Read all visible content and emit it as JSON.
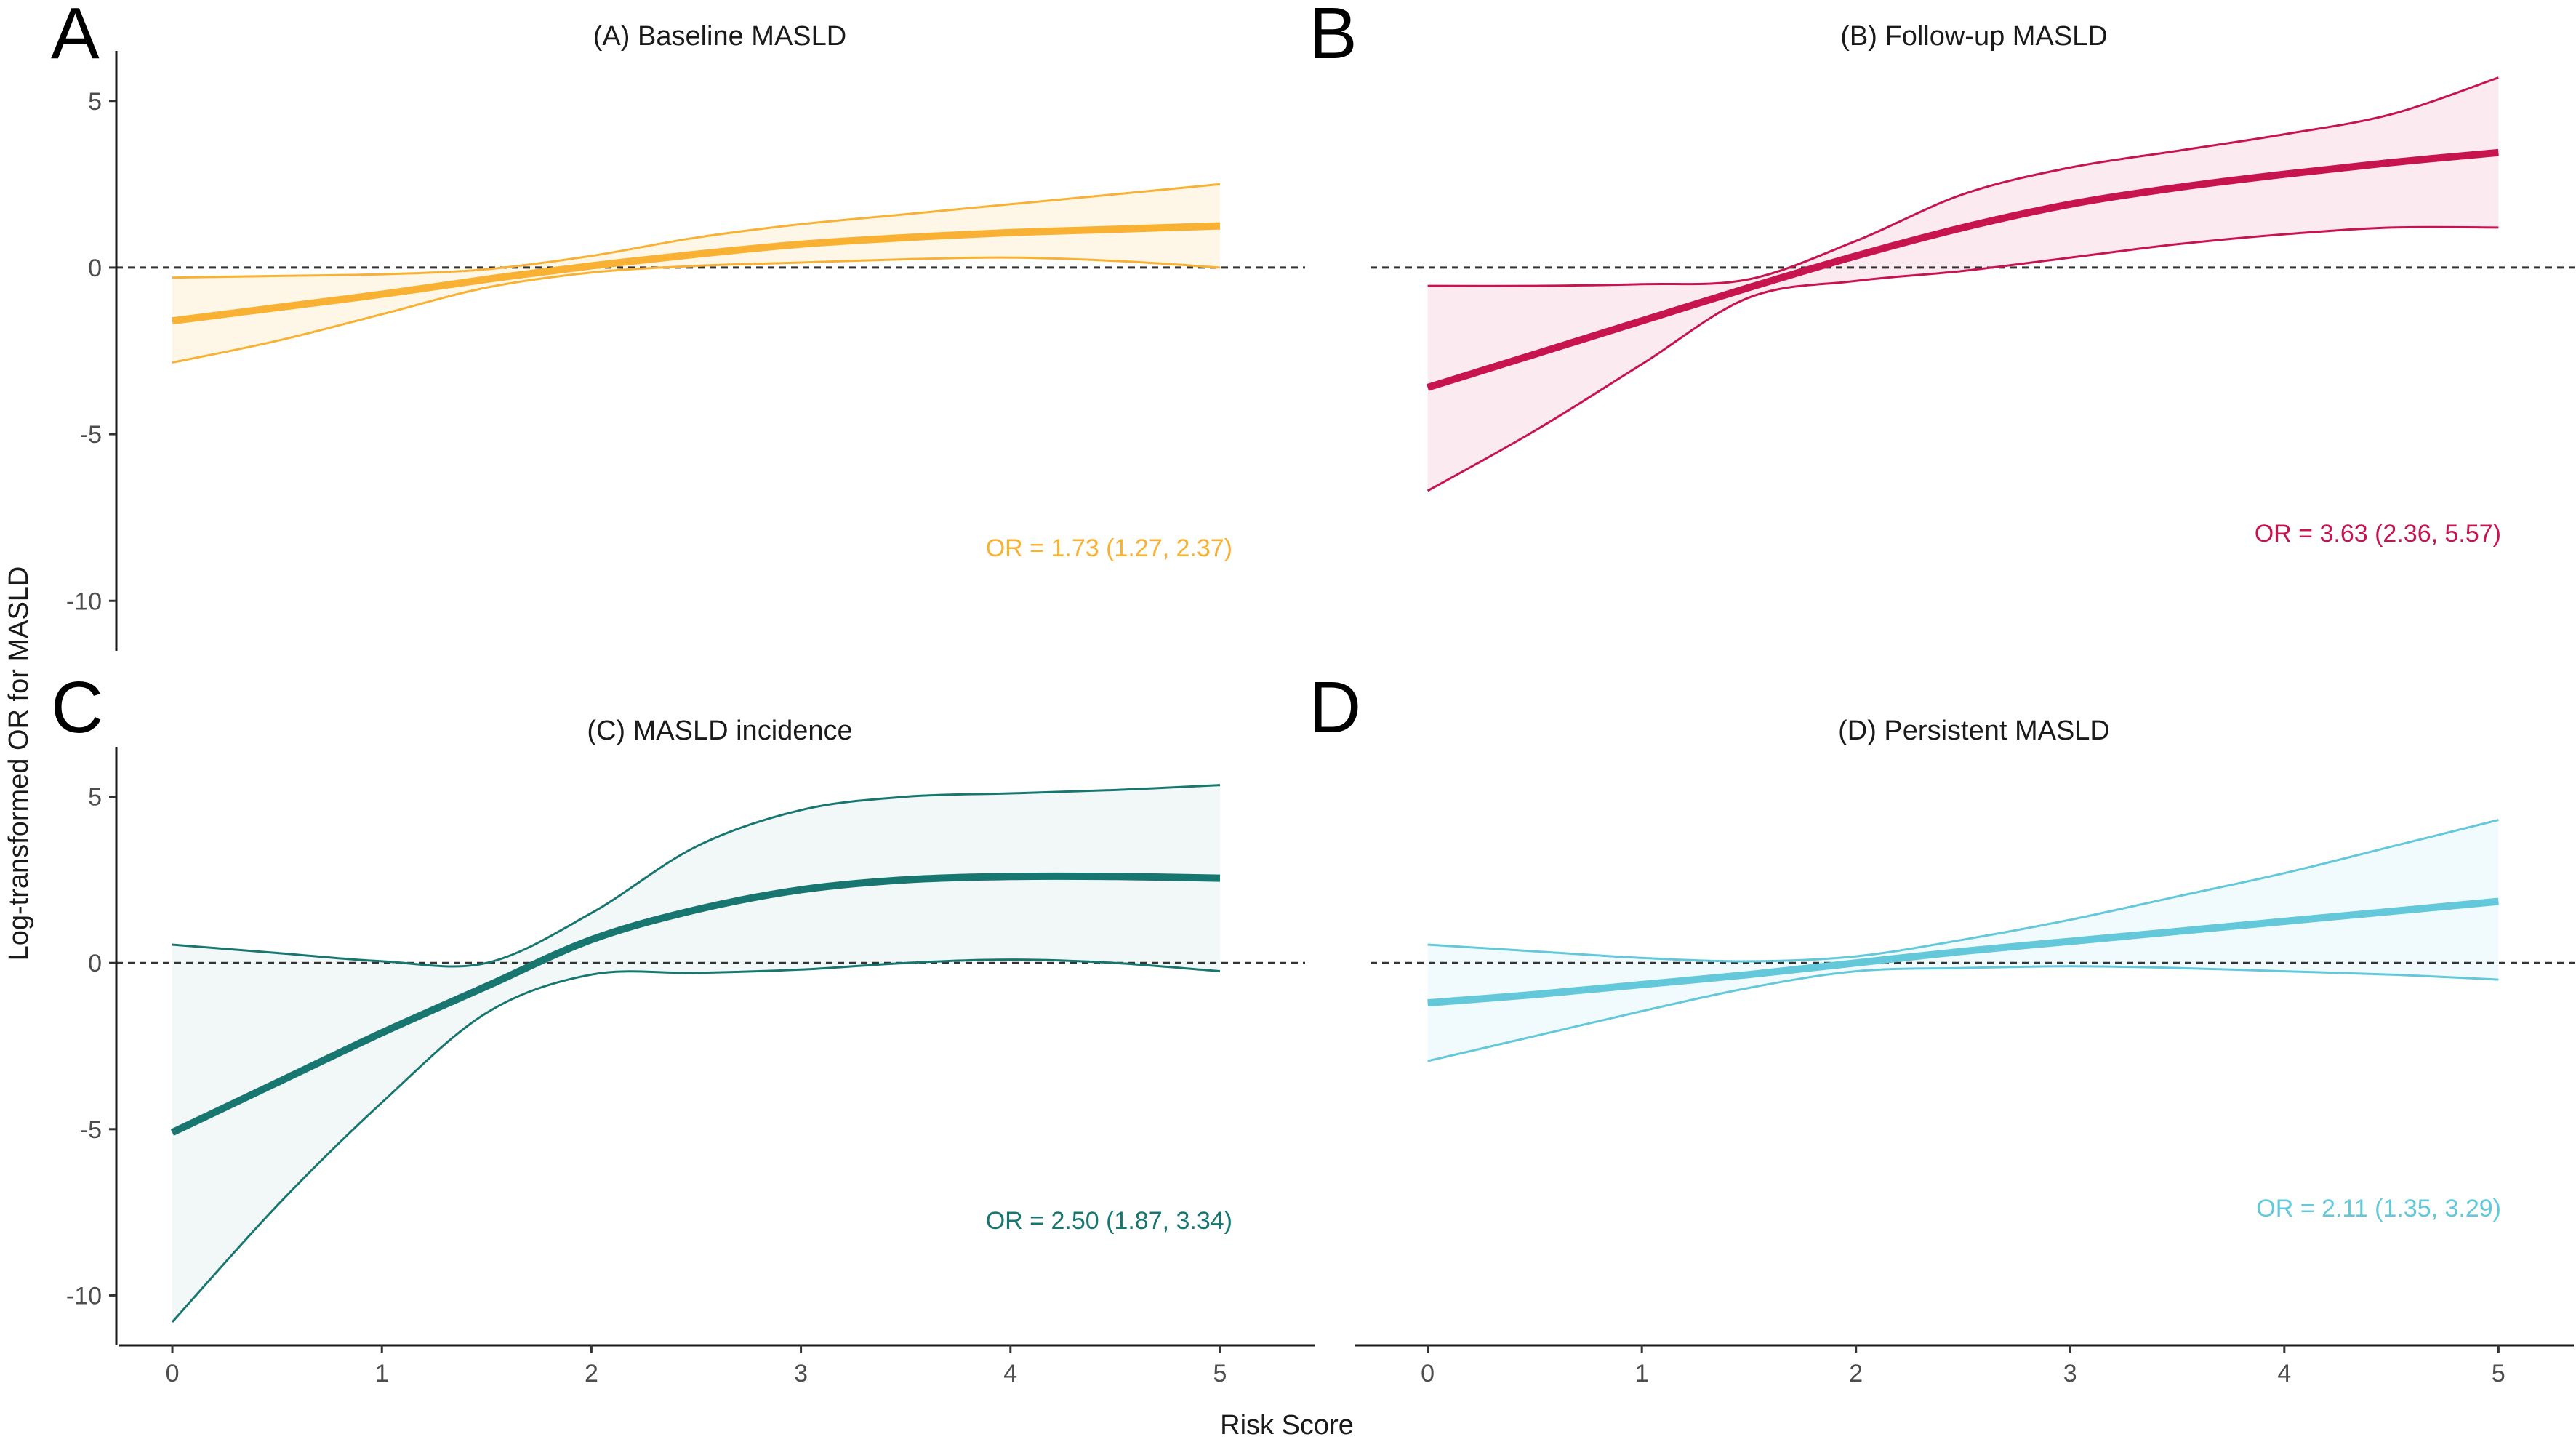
{
  "figure": {
    "shared_ylabel": "Log-transformed OR for MASLD",
    "shared_xlabel": "Risk Score"
  },
  "chart_data": [
    {
      "type": "line",
      "panel_label": "A",
      "title": "(A) Baseline MASLD",
      "annotation": "OR = 1.73 (1.27, 2.37)",
      "color": "#F8B133",
      "fill_color": "#FEF6E6",
      "xlabel": "Risk Score",
      "ylabel": "Log-transformed OR for MASLD",
      "xlim": [
        -0.25,
        5.25
      ],
      "ylim": [
        -11.5,
        6.5
      ],
      "xticks": [
        0,
        1,
        2,
        3,
        4,
        5
      ],
      "yticks": [
        5,
        0,
        -5,
        -10
      ],
      "reference_line": 0,
      "series": [
        {
          "name": "estimate",
          "x": [
            0,
            0.5,
            1,
            1.5,
            2,
            2.5,
            3,
            3.5,
            4,
            4.5,
            5
          ],
          "y": [
            -1.6,
            -1.2,
            -0.8,
            -0.35,
            0.05,
            0.4,
            0.7,
            0.9,
            1.05,
            1.15,
            1.25
          ]
        },
        {
          "name": "upper",
          "x": [
            0,
            0.5,
            1,
            1.5,
            2,
            2.5,
            3,
            3.5,
            4,
            4.5,
            5
          ],
          "y": [
            -0.3,
            -0.25,
            -0.2,
            -0.05,
            0.35,
            0.9,
            1.3,
            1.6,
            1.9,
            2.2,
            2.5
          ]
        },
        {
          "name": "lower",
          "x": [
            0,
            0.5,
            1,
            1.5,
            2,
            2.5,
            3,
            3.5,
            4,
            4.5,
            5
          ],
          "y": [
            -2.85,
            -2.2,
            -1.4,
            -0.6,
            -0.15,
            0.05,
            0.15,
            0.25,
            0.3,
            0.2,
            0.0
          ]
        }
      ]
    },
    {
      "type": "line",
      "panel_label": "B",
      "title": "(B) Follow-up MASLD",
      "annotation": "OR = 3.63 (2.36, 5.57)",
      "color": "#C8144E",
      "fill_color": "#FBEBF0",
      "xlabel": "Risk Score",
      "ylabel": "Log-transformed OR for MASLD",
      "xlim": [
        -0.25,
        5.25
      ],
      "ylim": [
        -11.5,
        6.5
      ],
      "xticks": [
        0,
        1,
        2,
        3,
        4,
        5
      ],
      "yticks": [
        5,
        0,
        -5,
        -10
      ],
      "reference_line": 0,
      "series": [
        {
          "name": "estimate",
          "x": [
            0,
            0.5,
            1,
            1.5,
            2,
            2.5,
            3,
            3.5,
            4,
            4.5,
            5
          ],
          "y": [
            -3.6,
            -2.6,
            -1.6,
            -0.6,
            0.35,
            1.2,
            1.9,
            2.4,
            2.8,
            3.15,
            3.45
          ]
        },
        {
          "name": "upper",
          "x": [
            0,
            0.5,
            1,
            1.5,
            2,
            2.5,
            3,
            3.5,
            4,
            4.5,
            5
          ],
          "y": [
            -0.55,
            -0.55,
            -0.5,
            -0.35,
            0.8,
            2.2,
            3.0,
            3.5,
            4.0,
            4.6,
            5.7
          ]
        },
        {
          "name": "lower",
          "x": [
            0,
            0.5,
            1,
            1.5,
            2,
            2.5,
            3,
            3.5,
            4,
            4.5,
            5
          ],
          "y": [
            -6.7,
            -4.9,
            -2.9,
            -0.9,
            -0.4,
            -0.1,
            0.3,
            0.7,
            1.0,
            1.2,
            1.2
          ]
        }
      ]
    },
    {
      "type": "line",
      "panel_label": "C",
      "title": "(C) MASLD incidence",
      "annotation": "OR = 2.50 (1.87, 3.34)",
      "color": "#177770",
      "fill_color": "#F2F7F7",
      "xlabel": "Risk Score",
      "ylabel": "Log-transformed OR for MASLD",
      "xlim": [
        -0.25,
        5.25
      ],
      "ylim": [
        -11.5,
        6.5
      ],
      "xticks": [
        0,
        1,
        2,
        3,
        4,
        5
      ],
      "yticks": [
        5,
        0,
        -5,
        -10
      ],
      "reference_line": 0,
      "series": [
        {
          "name": "estimate",
          "x": [
            0,
            0.5,
            1,
            1.5,
            2,
            2.5,
            3,
            3.5,
            4,
            4.5,
            5
          ],
          "y": [
            -5.1,
            -3.6,
            -2.1,
            -0.7,
            0.7,
            1.6,
            2.2,
            2.5,
            2.6,
            2.6,
            2.55
          ]
        },
        {
          "name": "upper",
          "x": [
            0,
            0.5,
            1,
            1.5,
            2,
            2.5,
            3,
            3.5,
            4,
            4.5,
            5
          ],
          "y": [
            0.55,
            0.3,
            0.05,
            0.0,
            1.5,
            3.5,
            4.6,
            5.0,
            5.1,
            5.2,
            5.35
          ]
        },
        {
          "name": "lower",
          "x": [
            0,
            0.5,
            1,
            1.5,
            2,
            2.5,
            3,
            3.5,
            4,
            4.5,
            5
          ],
          "y": [
            -10.8,
            -7.3,
            -4.2,
            -1.5,
            -0.35,
            -0.3,
            -0.2,
            0.0,
            0.1,
            0.0,
            -0.25
          ]
        }
      ]
    },
    {
      "type": "line",
      "panel_label": "D",
      "title": "(D) Persistent MASLD",
      "annotation": "OR = 2.11 (1.35, 3.29)",
      "color": "#62C8DA",
      "fill_color": "#F1FAFC",
      "xlabel": "Risk Score",
      "ylabel": "Log-transformed OR for MASLD",
      "xlim": [
        -0.25,
        5.25
      ],
      "ylim": [
        -11.5,
        6.5
      ],
      "xticks": [
        0,
        1,
        2,
        3,
        4,
        5
      ],
      "yticks": [
        5,
        0,
        -5,
        -10
      ],
      "reference_line": 0,
      "series": [
        {
          "name": "estimate",
          "x": [
            0,
            0.5,
            1,
            1.5,
            2,
            2.5,
            3,
            3.5,
            4,
            4.5,
            5
          ],
          "y": [
            -1.2,
            -0.95,
            -0.65,
            -0.35,
            0.0,
            0.35,
            0.65,
            0.95,
            1.25,
            1.55,
            1.85
          ]
        },
        {
          "name": "upper",
          "x": [
            0,
            0.5,
            1,
            1.5,
            2,
            2.5,
            3,
            3.5,
            4,
            4.5,
            5
          ],
          "y": [
            0.55,
            0.35,
            0.15,
            0.05,
            0.2,
            0.7,
            1.3,
            2.0,
            2.7,
            3.5,
            4.3
          ]
        },
        {
          "name": "lower",
          "x": [
            0,
            0.5,
            1,
            1.5,
            2,
            2.5,
            3,
            3.5,
            4,
            4.5,
            5
          ],
          "y": [
            -2.95,
            -2.2,
            -1.45,
            -0.75,
            -0.25,
            -0.15,
            -0.1,
            -0.15,
            -0.25,
            -0.35,
            -0.5
          ]
        }
      ]
    }
  ]
}
